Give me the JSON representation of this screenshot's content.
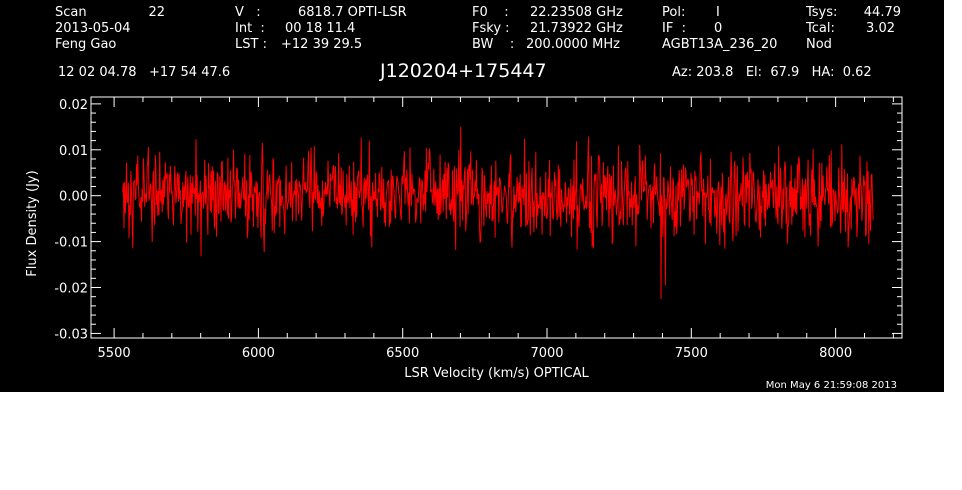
{
  "header": {
    "scan_label": "Scan",
    "scan_value": "22",
    "date": "2013-05-04",
    "observer": "Feng Gao",
    "v_label": "V   :",
    "v_value": "6818.7 OPTI-LSR",
    "int_label": "Int  :",
    "int_value": "00 18 11.4",
    "lst_label": "LST :",
    "lst_value": "+12 39 29.5",
    "f0_label": "F0    :",
    "f0_value": "22.23508 GHz",
    "fsky_label": "Fsky :",
    "fsky_value": "21.73922 GHz",
    "bw_label": "BW    :",
    "bw_value": "200.0000 MHz",
    "pol_label": "Pol:",
    "pol_value": "I",
    "if_label": "IF  :",
    "if_value": "0",
    "project": "AGBT13A_236_20",
    "tsys_label": "Tsys:",
    "tsys_value": "44.79",
    "tcal_label": "Tcal:",
    "tcal_value": "3.02",
    "proc": "Nod",
    "ra_dec": "12 02 04.78   +17 54 47.6",
    "source": "J120204+175447",
    "az_el_ha": "Az: 203.8   El:  67.9   HA:  0.62"
  },
  "timestamp": "Mon May  6 21:59:08 2013",
  "colors": {
    "background": "#000000",
    "axes": "#ffffff",
    "trace": "#ff0000"
  },
  "chart_data": {
    "type": "line",
    "xlabel": "LSR Velocity (km/s) OPTICAL",
    "ylabel": "Flux Density (Jy)",
    "xlim": [
      5420,
      8230
    ],
    "ylim": [
      -0.031,
      0.0215
    ],
    "x_ticks": [
      5500,
      6000,
      6500,
      7000,
      7500,
      8000
    ],
    "x_tick_labels": [
      "5500",
      "6000",
      "6500",
      "7000",
      "7500",
      "8000"
    ],
    "y_ticks": [
      0.02,
      0.01,
      0.0,
      -0.01,
      -0.02,
      -0.03
    ],
    "y_tick_labels": [
      "0.02",
      "0.01",
      "0.00",
      "-0.01",
      "-0.02",
      "-0.03"
    ],
    "grid": false,
    "series": [
      {
        "x_start": 5530,
        "x_end": 8130,
        "points_count": 1200,
        "baseline": 0.0,
        "rms": 0.0045,
        "envelope_max": 0.015,
        "envelope_min": -0.015,
        "features": [
          {
            "x": 6700,
            "peak": 0.015
          },
          {
            "x": 7395,
            "min": -0.0225
          },
          {
            "x": 7410,
            "min": -0.0195
          }
        ]
      }
    ]
  }
}
